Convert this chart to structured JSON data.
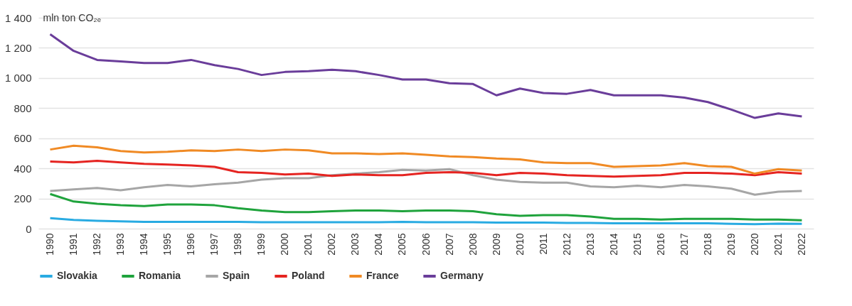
{
  "chart_data": {
    "type": "line",
    "ylabel": "mln ton CO₂ₑ",
    "categories": [
      "1990",
      "1991",
      "1992",
      "1993",
      "1994",
      "1995",
      "1996",
      "1997",
      "1998",
      "1999",
      "2000",
      "2001",
      "2002",
      "2003",
      "2004",
      "2005",
      "2006",
      "2007",
      "2008",
      "2009",
      "2010",
      "2011",
      "2012",
      "2013",
      "2014",
      "2015",
      "2016",
      "2017",
      "2018",
      "2019",
      "2020",
      "2021",
      "2022"
    ],
    "series": [
      {
        "name": "Slovakia",
        "color": "#29abe2",
        "values": [
          70,
          58,
          52,
          48,
          45,
          45,
          45,
          45,
          45,
          42,
          42,
          42,
          42,
          42,
          42,
          45,
          42,
          42,
          42,
          40,
          40,
          40,
          38,
          38,
          35,
          35,
          35,
          35,
          35,
          32,
          30,
          33,
          32
        ]
      },
      {
        "name": "Romania",
        "color": "#1fa33c",
        "values": [
          230,
          180,
          165,
          155,
          150,
          160,
          160,
          155,
          135,
          120,
          110,
          110,
          115,
          120,
          120,
          115,
          120,
          120,
          115,
          95,
          85,
          90,
          90,
          80,
          65,
          65,
          60,
          65,
          65,
          65,
          60,
          60,
          55
        ]
      },
      {
        "name": "Spain",
        "color": "#a6a6a6",
        "values": [
          250,
          260,
          270,
          255,
          275,
          290,
          280,
          295,
          305,
          325,
          335,
          335,
          355,
          365,
          375,
          390,
          385,
          395,
          355,
          325,
          310,
          305,
          305,
          280,
          275,
          285,
          275,
          290,
          280,
          265,
          225,
          245,
          250
        ]
      },
      {
        "name": "Poland",
        "color": "#e52421",
        "values": [
          445,
          440,
          450,
          440,
          430,
          425,
          420,
          410,
          375,
          370,
          360,
          365,
          350,
          360,
          355,
          355,
          370,
          375,
          370,
          355,
          370,
          365,
          355,
          350,
          345,
          350,
          355,
          370,
          370,
          365,
          355,
          375,
          365
        ]
      },
      {
        "name": "France",
        "color": "#f08a24",
        "values": [
          525,
          550,
          540,
          515,
          505,
          510,
          520,
          515,
          525,
          515,
          525,
          520,
          500,
          500,
          495,
          500,
          490,
          480,
          475,
          465,
          460,
          440,
          435,
          435,
          410,
          415,
          420,
          435,
          415,
          410,
          365,
          395,
          385
        ]
      },
      {
        "name": "Germany",
        "color": "#6a3d9a",
        "values": [
          1290,
          1180,
          1120,
          1110,
          1100,
          1100,
          1120,
          1085,
          1060,
          1020,
          1040,
          1045,
          1055,
          1045,
          1020,
          990,
          990,
          965,
          960,
          885,
          930,
          900,
          895,
          920,
          885,
          885,
          885,
          870,
          840,
          790,
          735,
          765,
          745
        ]
      }
    ],
    "ylim": [
      0,
      1400
    ],
    "yticks": [
      0,
      200,
      400,
      600,
      800,
      {
        "value": 1000,
        "label": "1 000"
      },
      {
        "value": 1200,
        "label": "1 200"
      },
      {
        "value": 1400,
        "label": "1 400"
      }
    ],
    "grid": "y",
    "legend": "bottom",
    "line_style": "solid"
  }
}
